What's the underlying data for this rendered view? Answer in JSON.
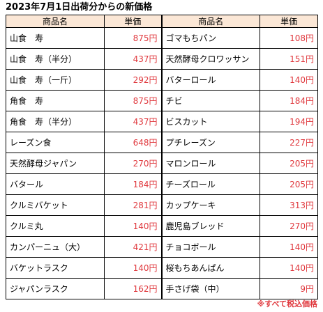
{
  "title": "2023年7月1日出荷分からの新価格",
  "headers": {
    "name": "商品名",
    "price": "単価"
  },
  "rows": [
    {
      "left_name": "山食　寿",
      "left_price": "875円",
      "right_name": "ゴマもちパン",
      "right_price": "108円"
    },
    {
      "left_name": "山食　寿（半分）",
      "left_price": "437円",
      "right_name": "天然酵母クロワッサン",
      "right_price": "151円"
    },
    {
      "left_name": "山食　寿（一斤）",
      "left_price": "292円",
      "right_name": "バターロール",
      "right_price": "140円"
    },
    {
      "left_name": "角食　寿",
      "left_price": "875円",
      "right_name": "チビ",
      "right_price": "184円"
    },
    {
      "left_name": "角食　寿（半分）",
      "left_price": "437円",
      "right_name": "ビスカット",
      "right_price": "194円"
    },
    {
      "left_name": "レーズン食",
      "left_price": "648円",
      "right_name": "プチレーズン",
      "right_price": "227円"
    },
    {
      "left_name": "天然酵母ジャパン",
      "left_price": "270円",
      "right_name": "マロンロール",
      "right_price": "205円"
    },
    {
      "left_name": "バタール",
      "left_price": "184円",
      "right_name": "チーズロール",
      "right_price": "205円"
    },
    {
      "left_name": "クルミバケット",
      "left_price": "281円",
      "right_name": "カップケーキ",
      "right_price": "313円"
    },
    {
      "left_name": "クルミ丸",
      "left_price": "140円",
      "right_name": "鹿児島ブレッド",
      "right_price": "270円"
    },
    {
      "left_name": "カンパーニュ（大）",
      "left_price": "421円",
      "right_name": "チョコボール",
      "right_price": "140円"
    },
    {
      "left_name": "バケットラスク",
      "left_price": "140円",
      "right_name": "桜もちあんぱん",
      "right_price": "140円"
    },
    {
      "left_name": "ジャパンラスク",
      "left_price": "162円",
      "right_name": "手さげ袋（中）",
      "right_price": "9円"
    }
  ],
  "footnote": "※すべて税込価格",
  "colors": {
    "header_bg": "#fbe7d6",
    "price_text": "#e0393e",
    "footnote_text": "#e0393e"
  }
}
